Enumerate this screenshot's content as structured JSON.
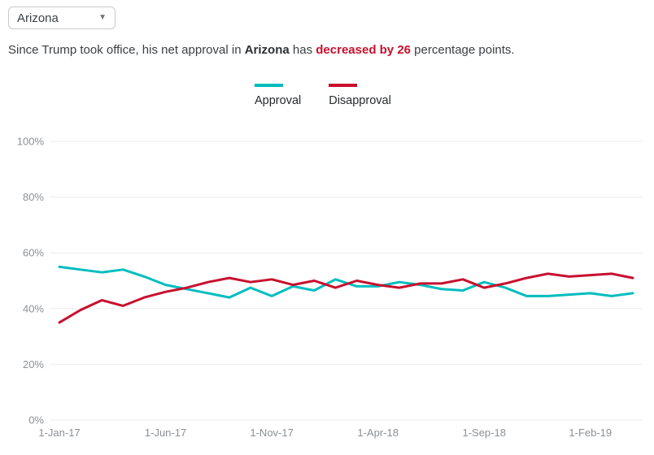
{
  "dropdown": {
    "value": "Arizona"
  },
  "headline": {
    "prefix": "Since Trump took office, his net approval in ",
    "state": "Arizona",
    "middle": " has ",
    "change": "decreased by 26",
    "suffix": " percentage points."
  },
  "legend": [
    {
      "label": "Approval",
      "color": "#00bdbe"
    },
    {
      "label": "Disapproval",
      "color": "#c8102e"
    }
  ],
  "colors": {
    "approval": "#00bdbe",
    "disapproval": "#c8102e",
    "accent_red_text": "#c8102e",
    "gridline": "#ececec",
    "axis_text": "#8c9094"
  },
  "chart_data": {
    "type": "line",
    "title": "",
    "xlabel": "",
    "ylabel": "",
    "grid": true,
    "legend_position": "top-center",
    "ylim": [
      0,
      100
    ],
    "x": [
      "Jan-17",
      "Feb-17",
      "Mar-17",
      "Apr-17",
      "May-17",
      "Jun-17",
      "Jul-17",
      "Aug-17",
      "Sep-17",
      "Oct-17",
      "Nov-17",
      "Dec-17",
      "Jan-18",
      "Feb-18",
      "Mar-18",
      "Apr-18",
      "May-18",
      "Jun-18",
      "Jul-18",
      "Aug-18",
      "Sep-18",
      "Oct-18",
      "Nov-18",
      "Dec-18",
      "Jan-19",
      "Feb-19",
      "Mar-19",
      "Apr-19"
    ],
    "series": [
      {
        "name": "Approval",
        "color": "#00bdbe",
        "values": [
          55,
          54,
          53,
          54,
          51.5,
          48.5,
          47,
          45.5,
          44,
          47.5,
          44.5,
          48,
          46.5,
          50.5,
          48,
          48,
          49.5,
          48.5,
          47,
          46.5,
          49.5,
          47.5,
          44.5,
          44.5,
          45,
          45.5,
          44.5,
          45.5
        ]
      },
      {
        "name": "Disapproval",
        "color": "#c8102e",
        "values": [
          35,
          39.5,
          43,
          41,
          44,
          46,
          47.5,
          49.5,
          51,
          49.5,
          50.5,
          48.5,
          50,
          47.5,
          50,
          48.5,
          47.5,
          49,
          49,
          50.5,
          47.5,
          49,
          51,
          52.5,
          51.5,
          52,
          52.5,
          51
        ]
      }
    ],
    "yticks": [
      {
        "v": 0,
        "label": "0%"
      },
      {
        "v": 20,
        "label": "20%"
      },
      {
        "v": 40,
        "label": "40%"
      },
      {
        "v": 60,
        "label": "60%"
      },
      {
        "v": 80,
        "label": "80%"
      },
      {
        "v": 100,
        "label": "100%"
      }
    ],
    "xticks": [
      {
        "i": 0,
        "label": "1-Jan-17"
      },
      {
        "i": 5,
        "label": "1-Jun-17"
      },
      {
        "i": 10,
        "label": "1-Nov-17"
      },
      {
        "i": 15,
        "label": "1-Apr-18"
      },
      {
        "i": 20,
        "label": "1-Sep-18"
      },
      {
        "i": 25,
        "label": "1-Feb-19"
      }
    ]
  }
}
